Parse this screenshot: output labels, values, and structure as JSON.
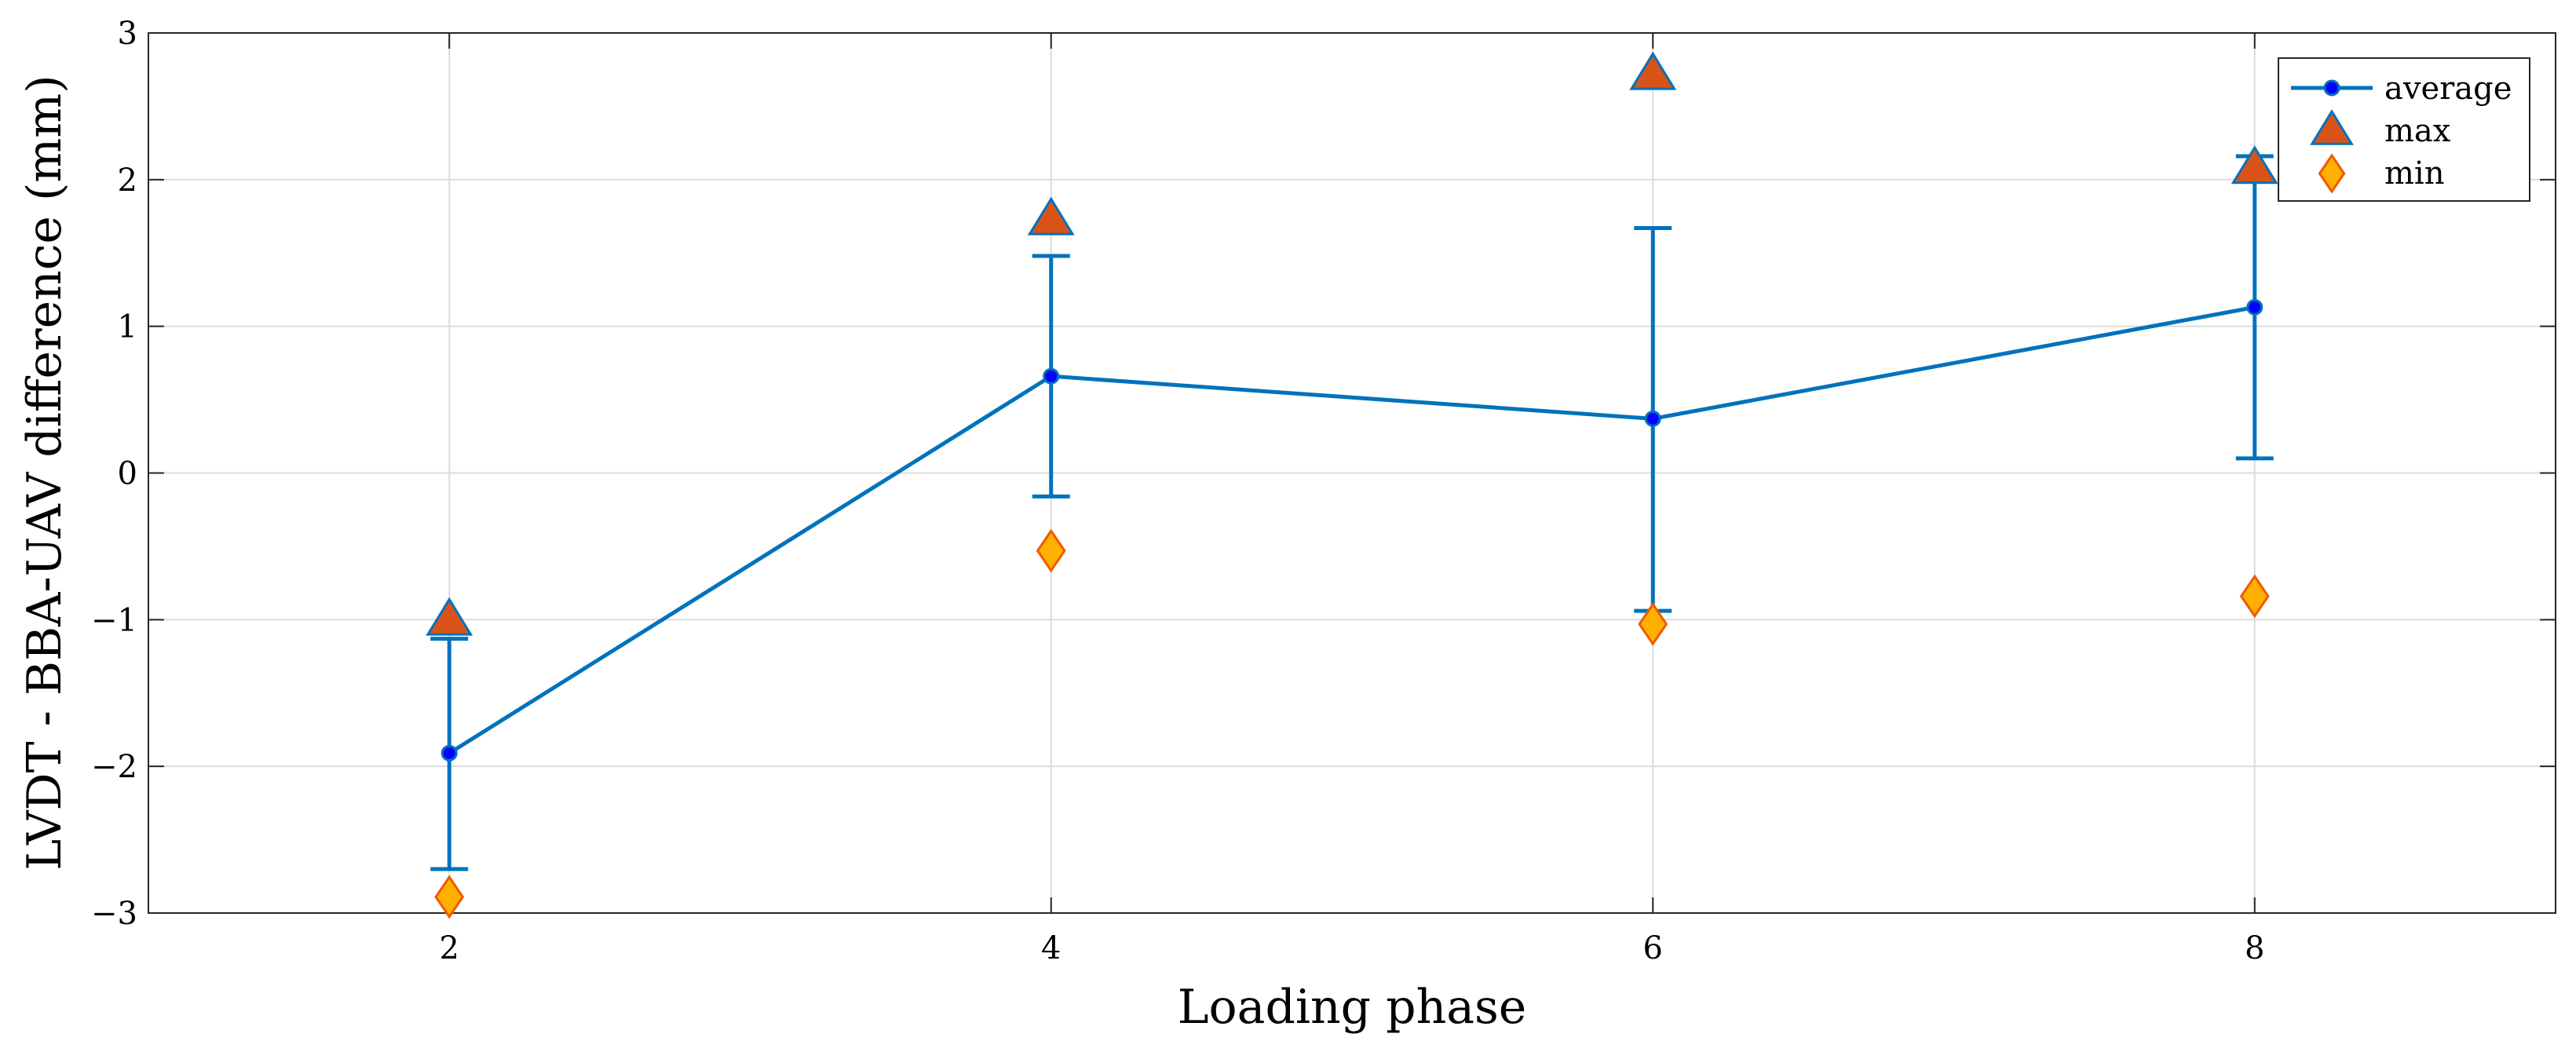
{
  "chart_data": {
    "type": "line",
    "xlabel": "Loading phase",
    "ylabel": "LVDT - BBA-UAV  difference (mm)",
    "xlim": [
      1,
      9
    ],
    "ylim": [
      -3,
      3
    ],
    "xticks": [
      2,
      4,
      6,
      8
    ],
    "yticks": [
      -3,
      -2,
      -1,
      0,
      1,
      2,
      3
    ],
    "ytick_labels": [
      "−3",
      "−2",
      "−1",
      "0",
      "1",
      "2",
      "3"
    ],
    "grid": true,
    "legend_position": "top-right",
    "x": [
      2,
      4,
      6,
      8
    ],
    "series": [
      {
        "name": "average",
        "kind": "line-errorbar",
        "color": "#0072BD",
        "marker_color": "#0000FF",
        "values": [
          -1.91,
          0.66,
          0.37,
          1.13
        ],
        "error_low": [
          -2.7,
          -0.16,
          -0.94,
          0.1
        ],
        "error_high": [
          -1.13,
          1.48,
          1.67,
          2.16
        ]
      },
      {
        "name": "max",
        "kind": "marker-triangle",
        "color": "#D95319",
        "edge_color": "#0072BD",
        "values": [
          -0.99,
          1.74,
          2.73,
          2.09
        ]
      },
      {
        "name": "min",
        "kind": "marker-diamond",
        "color": "#FFB000",
        "edge_color": "#F05A00",
        "values": [
          -2.89,
          -0.53,
          -1.03,
          -0.84
        ]
      }
    ]
  }
}
